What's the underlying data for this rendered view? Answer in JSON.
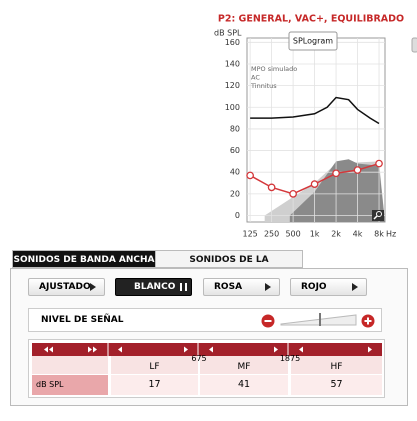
{
  "header": {
    "title": "P2: GENERAL, VAC+, EQUILIBRADO"
  },
  "chart_data": {
    "type": "line",
    "ylabel": "dB SPL",
    "xlabel": "Hz",
    "tooltip": "SPLogram",
    "log_x": true,
    "grid": true,
    "xlim": [
      113,
      9700
    ],
    "ylim": [
      -6,
      164
    ],
    "xticks": [
      125,
      250,
      500,
      {
        "value": 1000,
        "label": "1k"
      },
      {
        "value": 2000,
        "label": "2k"
      },
      {
        "value": 4000,
        "label": "4k"
      },
      {
        "value": 8000,
        "label": "8k"
      }
    ],
    "yticks": [
      0,
      20,
      40,
      60,
      80,
      100,
      120,
      140,
      160
    ],
    "series": [
      {
        "name": "MPO simulado",
        "color": "#111111",
        "x": [
          125,
          250,
          500,
          1000,
          1500,
          2000,
          3000,
          4000,
          6000,
          8000
        ],
        "values": [
          90,
          90,
          91,
          94,
          100,
          109,
          107,
          98,
          90,
          85
        ]
      },
      {
        "name": "AC",
        "color": "#d4373a",
        "markers": true,
        "x": [
          125,
          250,
          500,
          1000,
          2000,
          4000,
          8000
        ],
        "values": [
          37,
          26,
          20,
          29,
          39,
          42,
          48
        ]
      }
    ],
    "annotations": [
      "Tinnitus"
    ],
    "areas": [
      {
        "color": "#cfcfcf",
        "x": [
          200,
          1000,
          2000,
          8000
        ],
        "values": [
          0,
          30,
          48,
          50
        ]
      },
      {
        "color": "#8a8a8a",
        "x": [
          450,
          1000,
          2000,
          3000,
          4000,
          8000
        ],
        "values": [
          0,
          22,
          50,
          52,
          48,
          46
        ]
      }
    ]
  },
  "tabs": [
    "SONIDOS DE BANDA ANCHA",
    "SONIDOS DE LA NATURALEZA"
  ],
  "buttons": [
    "AJUSTADO",
    "BLANCO",
    "ROSA",
    "ROJO"
  ],
  "signal_level": {
    "label": "NIVEL DE SEÑAL"
  },
  "table": {
    "columns": [
      "LF",
      "MF",
      "HF"
    ],
    "boundaries": [
      "675",
      "1875"
    ],
    "row_label": "dB SPL",
    "values": [
      "17",
      "41",
      "57"
    ]
  }
}
